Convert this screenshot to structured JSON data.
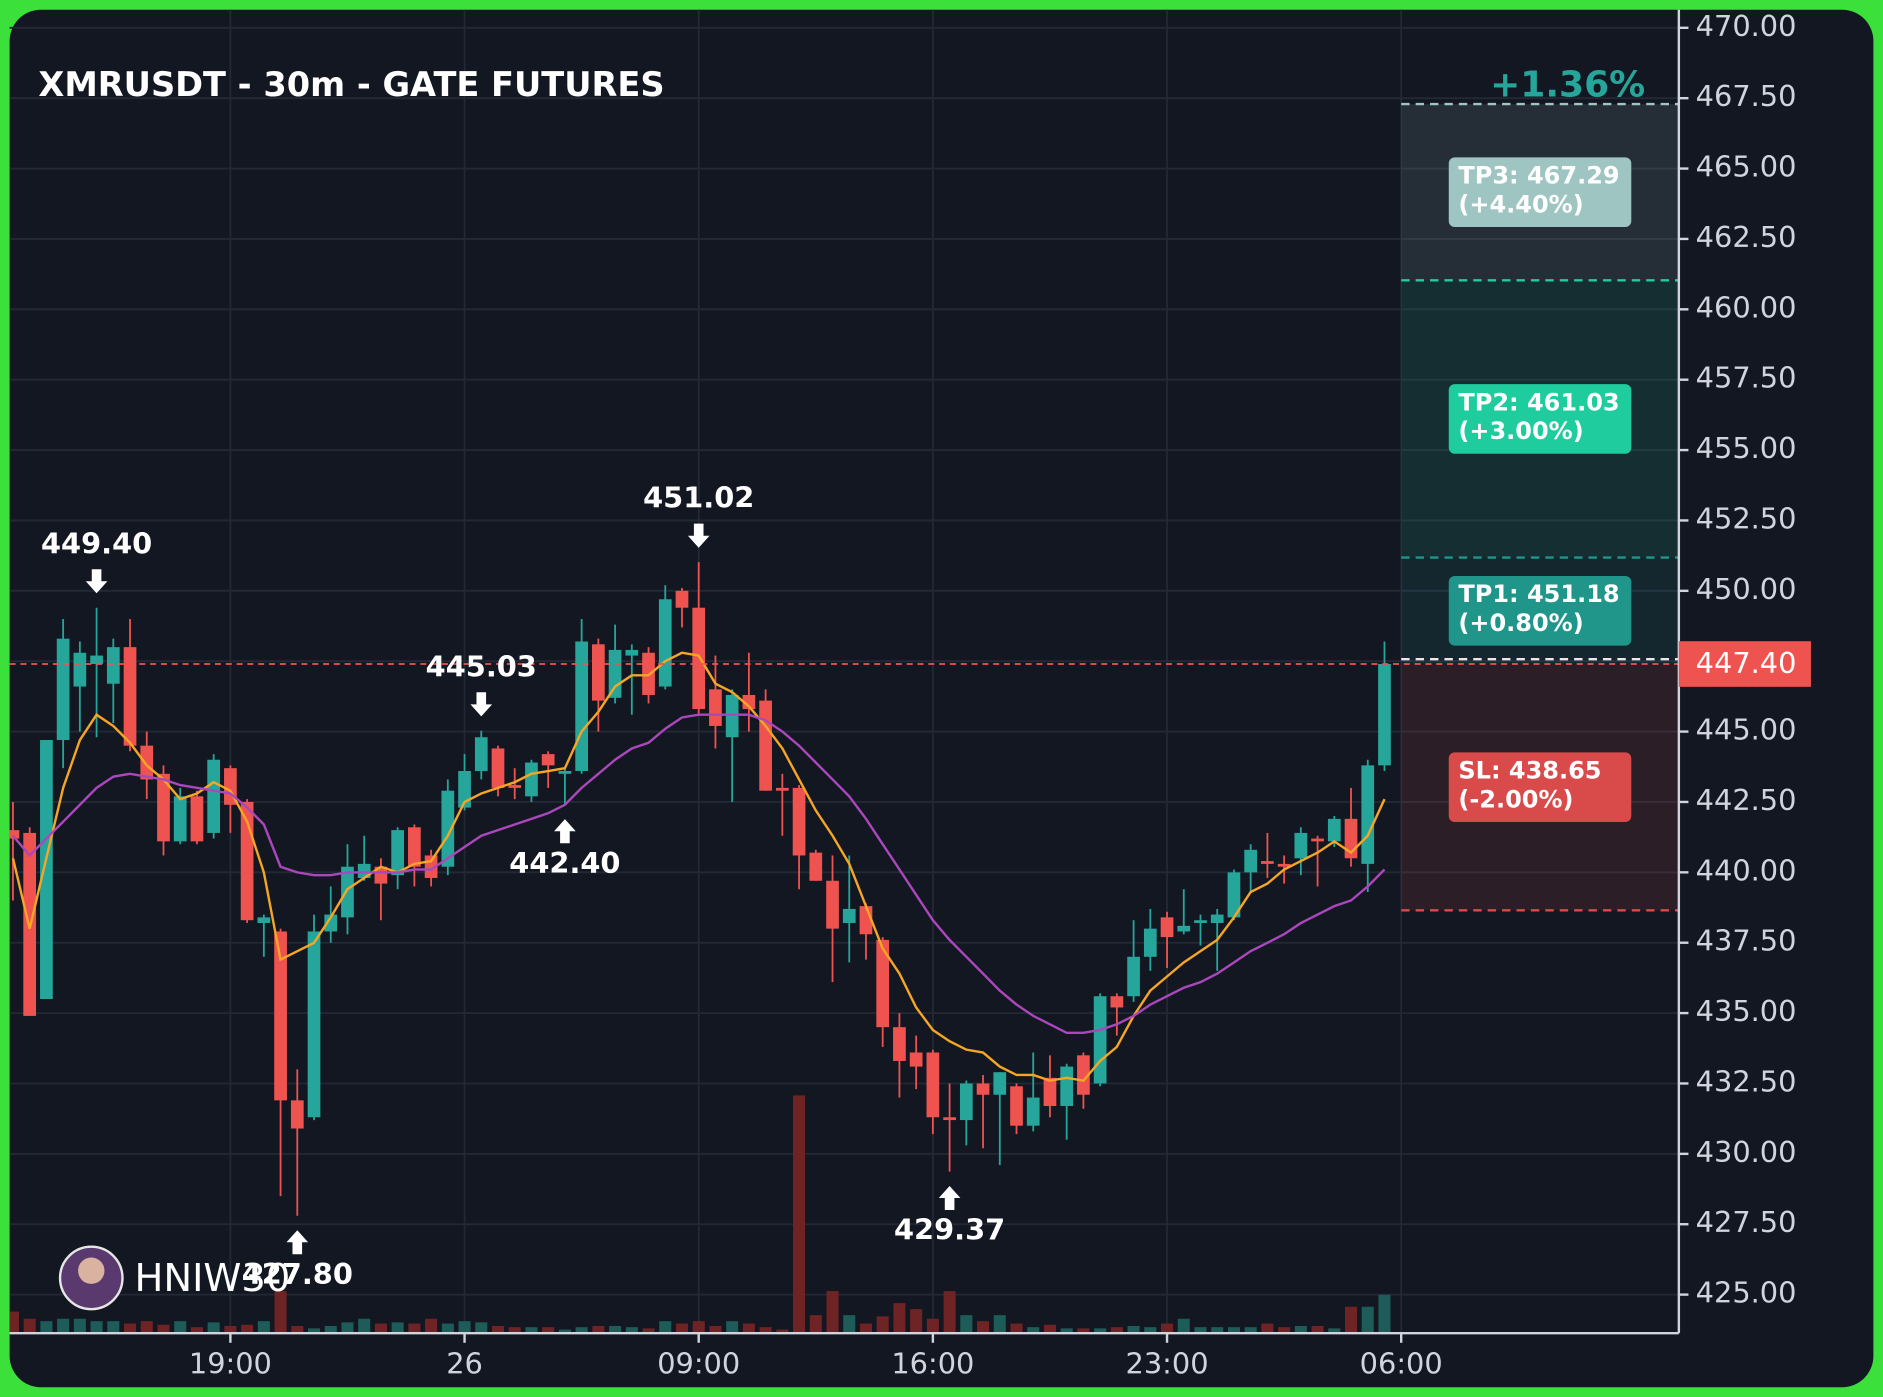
{
  "chart_data": {
    "type": "candlestick",
    "title": "XMRUSDT - 30m - GATE FUTURES",
    "change": {
      "value": 1.36,
      "label": "+1.36%"
    },
    "watermark": "HNIW30",
    "x": [
      0,
      1,
      2,
      3,
      4,
      5,
      6,
      7,
      8,
      9,
      10,
      11,
      12,
      13,
      14,
      15,
      16,
      17,
      18,
      19,
      20,
      21,
      22,
      23,
      24,
      25,
      26,
      27,
      28,
      29,
      30,
      31,
      32,
      33,
      34,
      35,
      36,
      37,
      38,
      39,
      40,
      41,
      42,
      43,
      44,
      45,
      46,
      47,
      48,
      49,
      50,
      51,
      52,
      53,
      54,
      55,
      56,
      57,
      58,
      59,
      60,
      61,
      62,
      63,
      64,
      65,
      66,
      67,
      68,
      69,
      70,
      71,
      72,
      73,
      74,
      75,
      76,
      77,
      78,
      79,
      80,
      81,
      82
    ],
    "open": [
      441.5,
      441.4,
      435.5,
      444.7,
      446.6,
      447.4,
      446.7,
      448,
      444.5,
      443.5,
      441.1,
      442.7,
      441.4,
      443.7,
      442.5,
      438.2,
      437.9,
      431.9,
      431.3,
      437.9,
      438.4,
      439.8,
      440.2,
      439.9,
      441.6,
      440.6,
      440.2,
      442.3,
      443.6,
      444.4,
      443.1,
      442.7,
      444.2,
      443.5,
      443.6,
      448.1,
      446.2,
      447.7,
      447.8,
      446.6,
      450,
      449.4,
      446.5,
      444.8,
      446.3,
      446.1,
      443,
      443,
      440.7,
      439.7,
      438.2,
      438.8,
      437.6,
      434.5,
      433.6,
      433.6,
      431.3,
      431.2,
      432.5,
      432.1,
      432.4,
      431,
      432.7,
      431.7,
      433.5,
      432.5,
      435.6,
      435.6,
      437,
      438.4,
      437.9,
      438.2,
      438.2,
      438.4,
      440,
      440.4,
      440.3,
      440.5,
      441.2,
      441.1,
      441.9,
      440.3,
      443.8
    ],
    "high": [
      442.5,
      441.6,
      444.7,
      449,
      448.2,
      449.4,
      448.3,
      449,
      445,
      443.8,
      443,
      442.9,
      444.2,
      443.8,
      442.6,
      438.5,
      438,
      433,
      438.5,
      439.5,
      441,
      441.3,
      440.5,
      441.6,
      441.7,
      440.8,
      443.3,
      444.2,
      445.03,
      444.5,
      443.7,
      444,
      444.3,
      443.7,
      449,
      448.3,
      448.8,
      448.1,
      448,
      450.2,
      450.1,
      451.02,
      447.7,
      446.5,
      447.8,
      446.5,
      443.5,
      443.1,
      440.8,
      440.6,
      440.6,
      438.9,
      437.7,
      435,
      434.2,
      433.7,
      432.5,
      432.6,
      432.8,
      432.9,
      432.5,
      433.6,
      433.5,
      433.2,
      433.6,
      435.7,
      435.7,
      438.3,
      438.7,
      438.6,
      439.4,
      438.5,
      438.7,
      440.1,
      441,
      441.4,
      440.6,
      441.6,
      441.3,
      442,
      443,
      444,
      448.2
    ],
    "low": [
      439,
      434.9,
      435.5,
      443.7,
      445,
      444.8,
      445.3,
      444.3,
      442.6,
      440.6,
      441,
      441,
      441.2,
      441.4,
      438.2,
      437,
      428.5,
      427.8,
      431.2,
      437.5,
      437.8,
      439.7,
      438.3,
      439.4,
      439.5,
      439.5,
      439.9,
      442.2,
      443.3,
      442.7,
      442.6,
      442.5,
      443,
      442.4,
      443.5,
      445,
      446,
      445.6,
      446,
      446.5,
      448.7,
      445.6,
      444.4,
      442.5,
      445,
      442.9,
      441.3,
      439.4,
      439.7,
      436.1,
      436.8,
      436.9,
      433.8,
      432,
      432.3,
      430.7,
      429.37,
      430.3,
      430.2,
      429.6,
      430.7,
      430.8,
      431.3,
      430.5,
      431.6,
      432.4,
      434.2,
      435.4,
      436.5,
      436.6,
      437.8,
      437.4,
      436.5,
      438.3,
      439.3,
      439.8,
      439.6,
      439.9,
      439.5,
      440.9,
      440.2,
      439.3,
      443.6
    ],
    "close": [
      441.2,
      434.9,
      444.7,
      448.3,
      447.8,
      447.7,
      448,
      444.5,
      443.3,
      441.1,
      442.7,
      441.1,
      444,
      442.4,
      438.3,
      438.4,
      431.9,
      430.9,
      437.9,
      438.5,
      440.2,
      440.3,
      439.6,
      441.5,
      440.2,
      439.8,
      442.9,
      443.6,
      444.8,
      443,
      443,
      443.9,
      443.8,
      443.6,
      448.2,
      446.1,
      447.9,
      447.9,
      446.3,
      449.7,
      449.4,
      445.8,
      445.2,
      446.3,
      445.8,
      442.9,
      442.9,
      440.6,
      439.7,
      438,
      438.7,
      437.8,
      434.5,
      433.3,
      433.1,
      431.3,
      431.2,
      432.5,
      432.1,
      432.9,
      431,
      432,
      431.7,
      433.1,
      432.1,
      435.6,
      435.2,
      437,
      438,
      437.7,
      438.1,
      438.3,
      438.5,
      440,
      440.8,
      440.3,
      440.2,
      441.4,
      441.1,
      441.9,
      440.5,
      443.8,
      447.4
    ],
    "volume": [
      18,
      12,
      10,
      12,
      12,
      10,
      10,
      8,
      10,
      7,
      10,
      5,
      9,
      6,
      7,
      10,
      35,
      6,
      4,
      6,
      9,
      12,
      8,
      9,
      8,
      12,
      8,
      10,
      9,
      6,
      5,
      5,
      5,
      3,
      5,
      6,
      6,
      5,
      4,
      10,
      8,
      10,
      6,
      10,
      8,
      5,
      3,
      198,
      15,
      35,
      15,
      8,
      14,
      25,
      20,
      12,
      35,
      15,
      10,
      15,
      8,
      5,
      7,
      4,
      4,
      4,
      5,
      6,
      5,
      8,
      12,
      5,
      5,
      5,
      5,
      8,
      5,
      6,
      6,
      4,
      22,
      22,
      32
    ],
    "up_color": "#26a69a",
    "down_color": "#ef5350",
    "overlays": [
      {
        "color": "#f5a623",
        "values": [
          440.5,
          438,
          440.5,
          443,
          444.7,
          445.6,
          445.2,
          444.6,
          443.8,
          443.3,
          442.6,
          442.8,
          443.2,
          442.9,
          441.8,
          440,
          436.9,
          437.2,
          437.5,
          438.4,
          439.4,
          439.8,
          440.2,
          440,
          440.3,
          440.4,
          441.3,
          442.5,
          442.8,
          443,
          443.2,
          443.5,
          443.6,
          443.7,
          445,
          445.7,
          446.6,
          447,
          447,
          447.5,
          447.8,
          447.7,
          446.7,
          446.4,
          445.9,
          445.2,
          444.4,
          443.3,
          442.2,
          441.3,
          440.3,
          438.8,
          437.3,
          436.4,
          435.2,
          434.4,
          434,
          433.7,
          433.6,
          433.1,
          432.8,
          432.8,
          432.6,
          432.7,
          432.6,
          433.3,
          433.8,
          434.9,
          435.8,
          436.3,
          436.8,
          437.2,
          437.6,
          438.4,
          439.3,
          439.6,
          440.1,
          440.4,
          440.7,
          441.1,
          440.7,
          441.3,
          442.6
        ]
      },
      {
        "color": "#ab47bc",
        "values": [
          441.3,
          440.6,
          441.2,
          441.8,
          442.4,
          443,
          443.4,
          443.5,
          443.4,
          443.3,
          443.1,
          443,
          442.9,
          442.8,
          442.3,
          441.7,
          440.2,
          440,
          439.9,
          439.9,
          440,
          440,
          440,
          440,
          440.1,
          440.1,
          440.5,
          440.9,
          441.3,
          441.5,
          441.7,
          441.9,
          442.1,
          442.4,
          443,
          443.5,
          444,
          444.4,
          444.6,
          445.1,
          445.5,
          445.6,
          445.6,
          445.6,
          445.6,
          445.4,
          445,
          444.5,
          443.9,
          443.3,
          442.7,
          441.9,
          441,
          440.1,
          439.2,
          438.3,
          437.6,
          437,
          436.4,
          435.8,
          435.3,
          434.9,
          434.6,
          434.3,
          434.3,
          434.4,
          434.6,
          434.9,
          435.3,
          435.6,
          435.9,
          436.1,
          436.4,
          436.8,
          437.2,
          437.5,
          437.8,
          438.2,
          438.5,
          438.8,
          439,
          439.5,
          440.1
        ]
      }
    ],
    "annotations": [
      {
        "x": 5,
        "value": 449.4,
        "label": "449.40",
        "side": "above"
      },
      {
        "x": 17,
        "value": 427.8,
        "label": "427.80",
        "side": "below"
      },
      {
        "x": 28,
        "value": 445.03,
        "label": "445.03",
        "side": "above"
      },
      {
        "x": 33,
        "value": 442.4,
        "label": "442.40",
        "side": "below"
      },
      {
        "x": 41,
        "value": 451.02,
        "label": "451.02",
        "side": "above"
      },
      {
        "x": 56,
        "value": 429.37,
        "label": "429.37",
        "side": "below"
      }
    ],
    "entry": {
      "value": 447.4,
      "label": "447.40"
    },
    "levels": [
      {
        "label": "TP3: 467.29",
        "value": 467.29,
        "pct": 4.4,
        "pct_label": "(+4.40%)",
        "color": "#9fc5c2"
      },
      {
        "label": "TP2: 461.03",
        "value": 461.03,
        "pct": 3.0,
        "pct_label": "(+3.00%)",
        "color": "#1fcc9e"
      },
      {
        "label": "TP1: 451.18",
        "value": 451.18,
        "pct": 0.8,
        "pct_label": "(+0.80%)",
        "color": "#20968a"
      },
      {
        "label": "SL: 438.65",
        "value": 438.65,
        "pct": -2.0,
        "pct_label": "(-2.00%)",
        "color": "#d94a4a"
      }
    ],
    "xlim": [
      -0.2,
      99.6
    ],
    "xticks": [
      {
        "value": 13,
        "label": "19:00"
      },
      {
        "value": 27,
        "label": "26"
      },
      {
        "value": 41,
        "label": "09:00"
      },
      {
        "value": 55,
        "label": "16:00"
      },
      {
        "value": 69,
        "label": "23:00"
      },
      {
        "value": 83,
        "label": "06:00"
      }
    ],
    "ylim": [
      423.63,
      470.64
    ],
    "yticks": [
      {
        "value": 425,
        "label": "425.00"
      },
      {
        "value": 427.5,
        "label": "427.50"
      },
      {
        "value": 430,
        "label": "430.00"
      },
      {
        "value": 432.5,
        "label": "432.50"
      },
      {
        "value": 435,
        "label": "435.00"
      },
      {
        "value": 437.5,
        "label": "437.50"
      },
      {
        "value": 440,
        "label": "440.00"
      },
      {
        "value": 442.5,
        "label": "442.50"
      },
      {
        "value": 445,
        "label": "445.00"
      },
      {
        "value": 447.5,
        "label": "447.50"
      },
      {
        "value": 450,
        "label": "450.00"
      },
      {
        "value": 452.5,
        "label": "452.50"
      },
      {
        "value": 455,
        "label": "455.00"
      },
      {
        "value": 457.5,
        "label": "457.50"
      },
      {
        "value": 460,
        "label": "460.00"
      },
      {
        "value": 462.5,
        "label": "462.50"
      },
      {
        "value": 465,
        "label": "465.00"
      },
      {
        "value": 467.5,
        "label": "467.50"
      },
      {
        "value": 470,
        "label": "470.00"
      }
    ],
    "grid": true
  }
}
